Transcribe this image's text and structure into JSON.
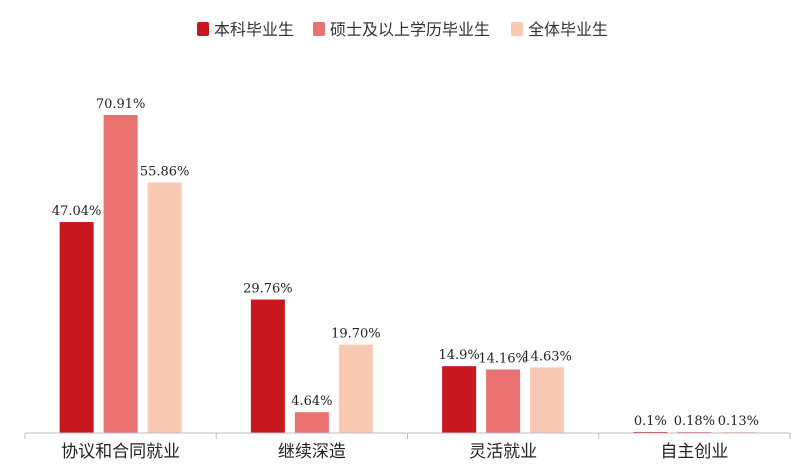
{
  "chart_data": {
    "type": "bar",
    "title": "",
    "xlabel": "",
    "ylabel": "",
    "ylim": [
      0,
      75
    ],
    "grid": false,
    "legend_position": "top-center",
    "categories": [
      "协议和合同就业",
      "继续深造",
      "灵活就业",
      "自主创业"
    ],
    "series": [
      {
        "name": "本科毕业生",
        "color": "#C8171E",
        "values": [
          47.04,
          29.76,
          14.9,
          0.1
        ],
        "labels": [
          "47.04%",
          "29.76%",
          "14.9%",
          "0.1%"
        ]
      },
      {
        "name": "硕士及以上学历毕业生",
        "color": "#E97170",
        "values": [
          70.91,
          4.64,
          14.16,
          0.18
        ],
        "labels": [
          "70.91%",
          "4.64%",
          "14.16%",
          "0.18%"
        ]
      },
      {
        "name": "全体毕业生",
        "color": "#F8C9B3",
        "values": [
          55.86,
          19.7,
          14.63,
          0.13
        ],
        "labels": [
          "55.86%",
          "19.70%",
          "14.63%",
          "0.13%"
        ]
      }
    ]
  }
}
